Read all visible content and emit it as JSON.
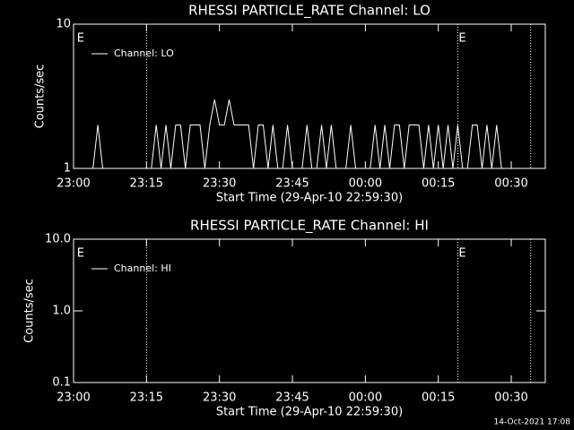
{
  "chart_data": [
    {
      "type": "line",
      "title": "RHESSI PARTICLE_RATE Channel: LO",
      "xlabel": "Start Time (29-Apr-10 22:59:30)",
      "ylabel": "Counts/sec",
      "x": [
        3,
        4,
        5,
        6,
        7,
        8,
        9,
        10,
        11,
        12,
        13,
        14,
        15,
        16,
        17,
        18,
        19,
        20,
        21,
        22,
        23,
        24,
        25,
        26,
        27,
        28,
        29,
        30,
        31,
        32,
        33,
        34,
        35,
        36,
        37,
        38,
        39,
        40,
        41,
        42,
        43,
        44,
        45,
        46,
        47,
        48,
        49,
        50,
        51,
        52,
        53,
        54,
        55,
        56,
        57,
        58,
        59,
        60,
        61,
        62,
        63,
        64,
        65,
        66,
        67,
        68,
        69,
        70,
        71,
        72,
        73,
        74,
        75,
        76,
        77,
        78,
        79,
        80,
        81,
        82,
        83,
        84,
        85,
        86,
        87,
        88,
        89
      ],
      "series": [
        {
          "name": "Channel: LO",
          "color": "#ffffff",
          "values": [
            1,
            1,
            2,
            1,
            1,
            1,
            1,
            1,
            1,
            1,
            1,
            1,
            1,
            1,
            2,
            1,
            2,
            1,
            2,
            2,
            1,
            2,
            2,
            2,
            1,
            2,
            3,
            2,
            2,
            3,
            2,
            2,
            2,
            2,
            1,
            2,
            2,
            1,
            2,
            1,
            1,
            2,
            1,
            1,
            1,
            2,
            1,
            1,
            2,
            1,
            2,
            1,
            1,
            1,
            2,
            1,
            1,
            1,
            1,
            2,
            1,
            2,
            1,
            2,
            2,
            1,
            2,
            2,
            2,
            1,
            2,
            1,
            2,
            1,
            2,
            1,
            2,
            1,
            1,
            2,
            2,
            1,
            2,
            1,
            2,
            1,
            1
          ]
        }
      ],
      "xlim": [
        0,
        97
      ],
      "xticks": [
        {
          "value": 0,
          "label": "23:00"
        },
        {
          "value": 15,
          "label": "23:15"
        },
        {
          "value": 30,
          "label": "23:30"
        },
        {
          "value": 45,
          "label": "23:45"
        },
        {
          "value": 60,
          "label": "00:00"
        },
        {
          "value": 75,
          "label": "00:15"
        },
        {
          "value": 90,
          "label": "00:30"
        }
      ],
      "ylim": [
        1,
        10
      ],
      "yticks": [
        1,
        10
      ],
      "log_y": true,
      "vlines": [
        15,
        79,
        94
      ],
      "annotations": [
        {
          "x": 0.5,
          "text": "E"
        },
        {
          "x": 79,
          "text": "E"
        }
      ]
    },
    {
      "type": "line",
      "title": "RHESSI PARTICLE_RATE Channel: HI",
      "xlabel": "Start Time (29-Apr-10 22:59:30)",
      "ylabel": "Counts/sec",
      "x": [],
      "series": [
        {
          "name": "Channel: HI",
          "color": "#ffffff",
          "values": []
        }
      ],
      "xlim": [
        0,
        97
      ],
      "xticks": [
        {
          "value": 0,
          "label": "23:00"
        },
        {
          "value": 15,
          "label": "23:15"
        },
        {
          "value": 30,
          "label": "23:30"
        },
        {
          "value": 45,
          "label": "23:45"
        },
        {
          "value": 60,
          "label": "00:00"
        },
        {
          "value": 75,
          "label": "00:15"
        },
        {
          "value": 90,
          "label": "00:30"
        }
      ],
      "ylim": [
        0.1,
        10
      ],
      "yticks": [
        0.1,
        {
          "value": 1,
          "label": "1.0"
        },
        {
          "value": 10,
          "label": "10.0"
        }
      ],
      "log_y": true,
      "vlines": [
        15,
        79,
        94
      ],
      "annotations": [
        {
          "x": 0.5,
          "text": "E"
        },
        {
          "x": 79,
          "text": "E"
        }
      ]
    }
  ],
  "footer": "14-Oct-2021 17:08"
}
